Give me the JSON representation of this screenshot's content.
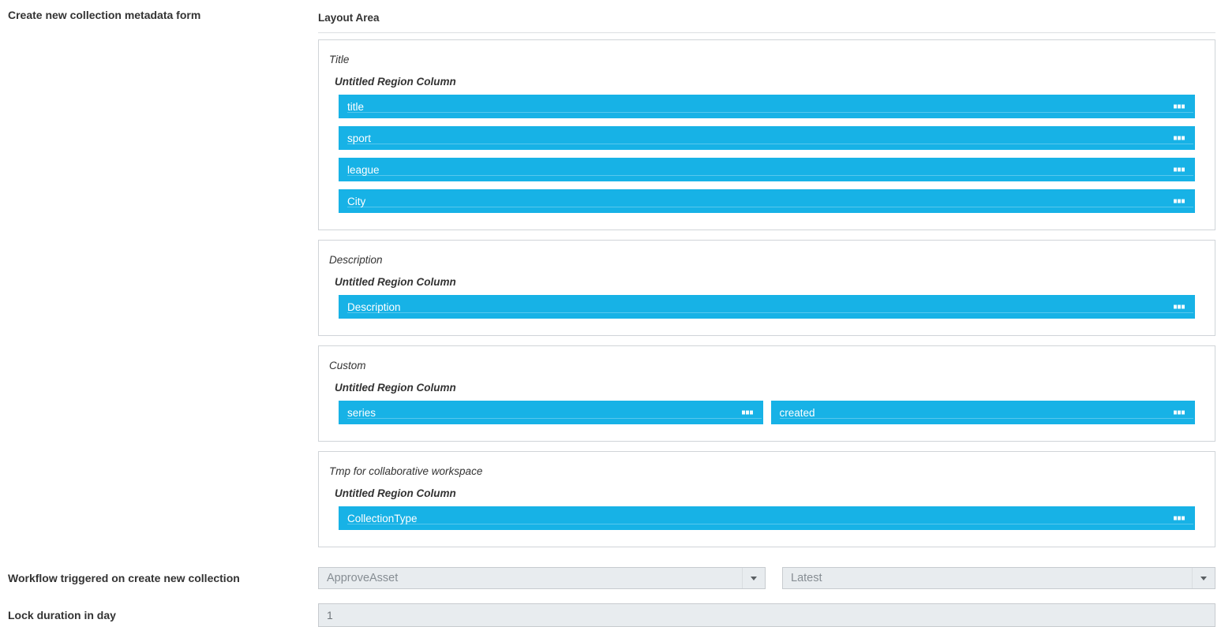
{
  "labels": {
    "create_form": "Create new collection metadata form",
    "layout_area": "Layout Area",
    "workflow": "Workflow triggered on create new collection",
    "lock_duration": "Lock duration in day"
  },
  "layout_area": {
    "sections": [
      {
        "title": "Title",
        "region_label": "Untitled Region Column",
        "layout": "stack",
        "fields": [
          "title",
          "sport",
          "league",
          "City"
        ]
      },
      {
        "title": "Description",
        "region_label": "Untitled Region Column",
        "layout": "stack",
        "fields": [
          "Description"
        ]
      },
      {
        "title": "Custom",
        "region_label": "Untitled Region Column",
        "layout": "row",
        "fields": [
          "series",
          "created"
        ]
      },
      {
        "title": "Tmp for collaborative workspace",
        "region_label": "Untitled Region Column",
        "layout": "stack",
        "fields": [
          "CollectionType"
        ]
      }
    ]
  },
  "workflow_controls": {
    "workflow_select_value": "ApproveAsset",
    "version_select_value": "Latest"
  },
  "lock_input": {
    "value": "1"
  },
  "icons": {
    "drag_handle": "three-squares-horizontal",
    "dropdown_caret": "triangle-down"
  },
  "colors": {
    "field_bar_blue": "#17b2e6",
    "bar_text": "#ffffff",
    "control_bg": "#e8ecef",
    "control_border": "#c7cbcf",
    "control_text": "#868d93",
    "box_border": "#d0d4d8"
  }
}
